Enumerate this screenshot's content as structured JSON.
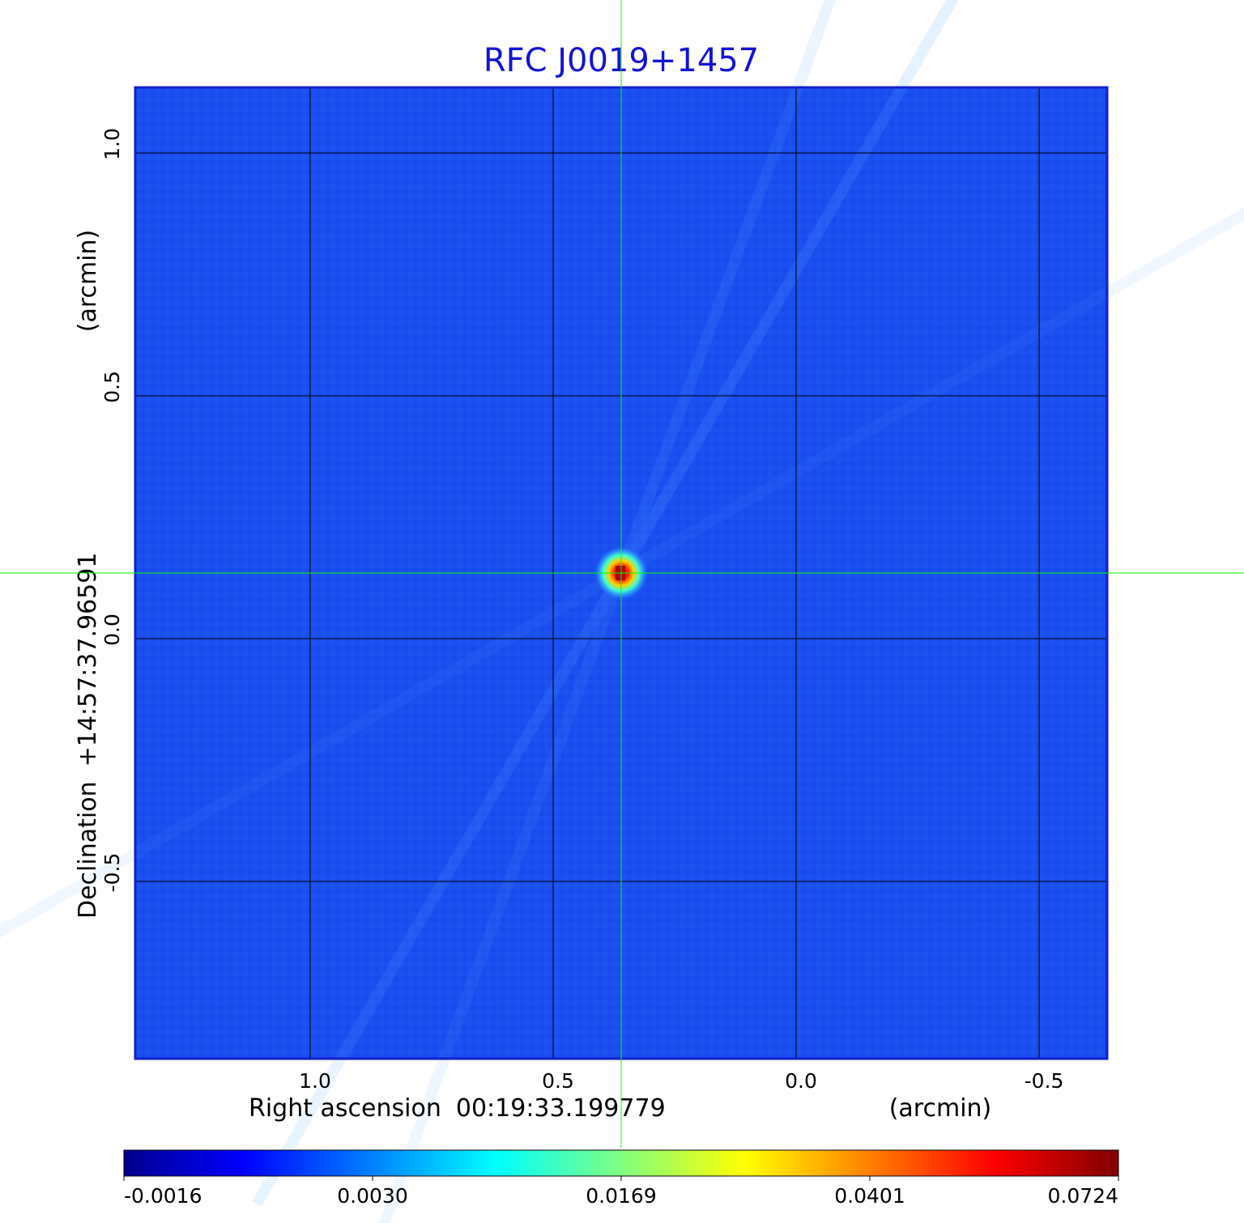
{
  "chart_data": {
    "type": "heatmap",
    "title": "RFC J0019+1457",
    "xlabel": {
      "prefix": "Right ascension",
      "value": "00:19:33.199779",
      "unit": "(arcmin)"
    },
    "ylabel": {
      "prefix": "Declination",
      "value": "+14:57:37.96591",
      "unit": "(arcmin)"
    },
    "x_ticks": [
      {
        "value": 1.0,
        "label": "1.0"
      },
      {
        "value": 0.5,
        "label": "0.5"
      },
      {
        "value": 0.0,
        "label": "0.0"
      },
      {
        "value": -0.5,
        "label": "-0.5"
      }
    ],
    "y_ticks": [
      {
        "value": 1.0,
        "label": "1.0"
      },
      {
        "value": 0.5,
        "label": "0.5"
      },
      {
        "value": 0.0,
        "label": "0.0"
      },
      {
        "value": -0.5,
        "label": "-0.5"
      }
    ],
    "xlim": [
      1.36,
      -0.64
    ],
    "ylim": [
      -0.865,
      1.135
    ],
    "x_direction": "decreasing to the right",
    "grid": true,
    "crosshair": {
      "x": 0.36,
      "y": 0.135,
      "color": "#00ff00"
    },
    "source": {
      "x": 0.36,
      "y": 0.135,
      "peak": 0.0724
    },
    "colormap": "jet",
    "colorbar": {
      "orientation": "horizontal",
      "position": "bottom",
      "min": -0.0016,
      "max": 0.0724,
      "ticks": [
        "-0.0016",
        "0.0030",
        "0.0169",
        "0.0401",
        "0.0724"
      ]
    }
  }
}
